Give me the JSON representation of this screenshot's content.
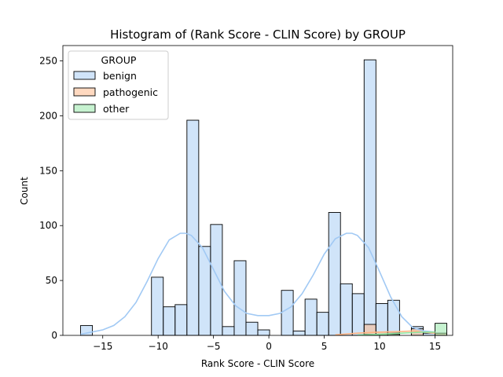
{
  "chart_data": {
    "type": "bar",
    "title": "Histogram of (Rank Score - CLIN Score) by GROUP",
    "xlabel": "Rank Score - CLIN Score",
    "ylabel": "Count",
    "xlim": [
      -18.6,
      16.6
    ],
    "ylim": [
      0,
      264
    ],
    "xticks": [
      -15,
      -10,
      -5,
      0,
      5,
      10,
      15
    ],
    "yticks": [
      0,
      50,
      100,
      150,
      200,
      250
    ],
    "bin_start": -17,
    "bin_width": 1.0667,
    "legend": {
      "title": "GROUP",
      "position": "upper-left"
    },
    "series": [
      {
        "name": "benign",
        "color": "#a1c9f4",
        "counts": [
          9,
          0,
          0,
          0,
          0,
          0,
          53,
          26,
          28,
          196,
          81,
          101,
          8,
          68,
          12,
          5,
          0,
          41,
          4,
          33,
          21,
          112,
          47,
          38,
          251,
          29,
          32,
          0,
          8,
          2,
          0
        ]
      },
      {
        "name": "pathogenic",
        "color": "#ffb482",
        "counts": [
          0,
          0,
          0,
          0,
          0,
          0,
          0,
          0,
          0,
          0,
          0,
          0,
          0,
          0,
          0,
          0,
          0,
          0,
          0,
          0,
          0,
          0,
          0,
          0,
          10,
          3,
          3,
          0,
          6,
          0,
          2
        ]
      },
      {
        "name": "other",
        "color": "#8de5a1",
        "counts": [
          0,
          0,
          0,
          0,
          0,
          0,
          0,
          0,
          0,
          0,
          0,
          0,
          0,
          0,
          0,
          0,
          0,
          0,
          0,
          0,
          0,
          0,
          0,
          0,
          1,
          1,
          1,
          0,
          0,
          0,
          11
        ]
      }
    ],
    "kde_line": {
      "series": "benign",
      "x": [
        -17,
        -16,
        -15,
        -14,
        -13,
        -12,
        -11,
        -10,
        -9,
        -8,
        -7.5,
        -7,
        -6,
        -5,
        -4,
        -3,
        -2,
        -1,
        0,
        1,
        2,
        3,
        4,
        5,
        6,
        7,
        7.5,
        8,
        9,
        10,
        11,
        12,
        13,
        14,
        15
      ],
      "y": [
        1,
        3,
        5,
        9,
        17,
        30,
        49,
        70,
        87,
        93,
        93,
        91,
        80,
        60,
        40,
        27,
        20,
        18,
        18,
        20,
        26,
        38,
        55,
        74,
        88,
        93,
        93,
        91,
        80,
        58,
        35,
        17,
        7,
        4,
        3
      ]
    }
  }
}
